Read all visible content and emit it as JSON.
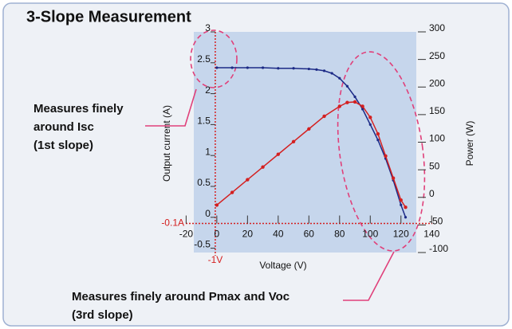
{
  "chart_data": {
    "type": "line",
    "title": "3-Slope Measurement",
    "x_label": "Voltage (V)",
    "y_label": "Output current (A)",
    "y2_label": "Power (W)",
    "xlim": [
      -15,
      130
    ],
    "ylim": [
      -0.57,
      3
    ],
    "y2lim": [
      -100,
      300
    ],
    "xticks": [
      -20,
      0,
      20,
      40,
      60,
      80,
      100,
      120,
      140
    ],
    "yticks": [
      -0.5,
      0,
      0.5,
      1,
      1.5,
      2,
      2.5,
      3
    ],
    "y2ticks": [
      -100,
      -50,
      0,
      50,
      100,
      150,
      200,
      250,
      300
    ],
    "series": [
      {
        "name": "Output current",
        "color": "#1c2a86",
        "x": [
          0,
          10,
          20,
          30,
          40,
          50,
          60,
          65,
          70,
          75,
          80,
          85,
          90,
          95,
          100,
          105,
          110,
          115,
          120,
          123
        ],
        "values": [
          2.42,
          2.42,
          2.42,
          2.42,
          2.41,
          2.41,
          2.4,
          2.39,
          2.37,
          2.33,
          2.25,
          2.12,
          1.95,
          1.75,
          1.5,
          1.25,
          0.95,
          0.6,
          0.2,
          0.0
        ]
      },
      {
        "name": "Power",
        "color": "#d42020",
        "axis": "y2",
        "x": [
          0,
          10,
          20,
          30,
          40,
          50,
          60,
          70,
          80,
          85,
          90,
          95,
          100,
          105,
          110,
          115,
          120,
          123
        ],
        "values": [
          -14,
          9,
          32,
          55,
          78,
          101,
          124,
          147,
          165,
          172,
          173,
          165,
          145,
          115,
          75,
          35,
          -5,
          -18
        ]
      }
    ],
    "annotations": [
      {
        "text": "-1V",
        "x": -1
      },
      {
        "text": "-0.1A",
        "y": -0.1
      },
      {
        "lines": [
          "Measures finely",
          "around Isc",
          "(1st slope)"
        ]
      },
      {
        "lines": [
          "Measures finely around Pmax and Voc",
          "(3rd slope)"
        ]
      }
    ]
  }
}
